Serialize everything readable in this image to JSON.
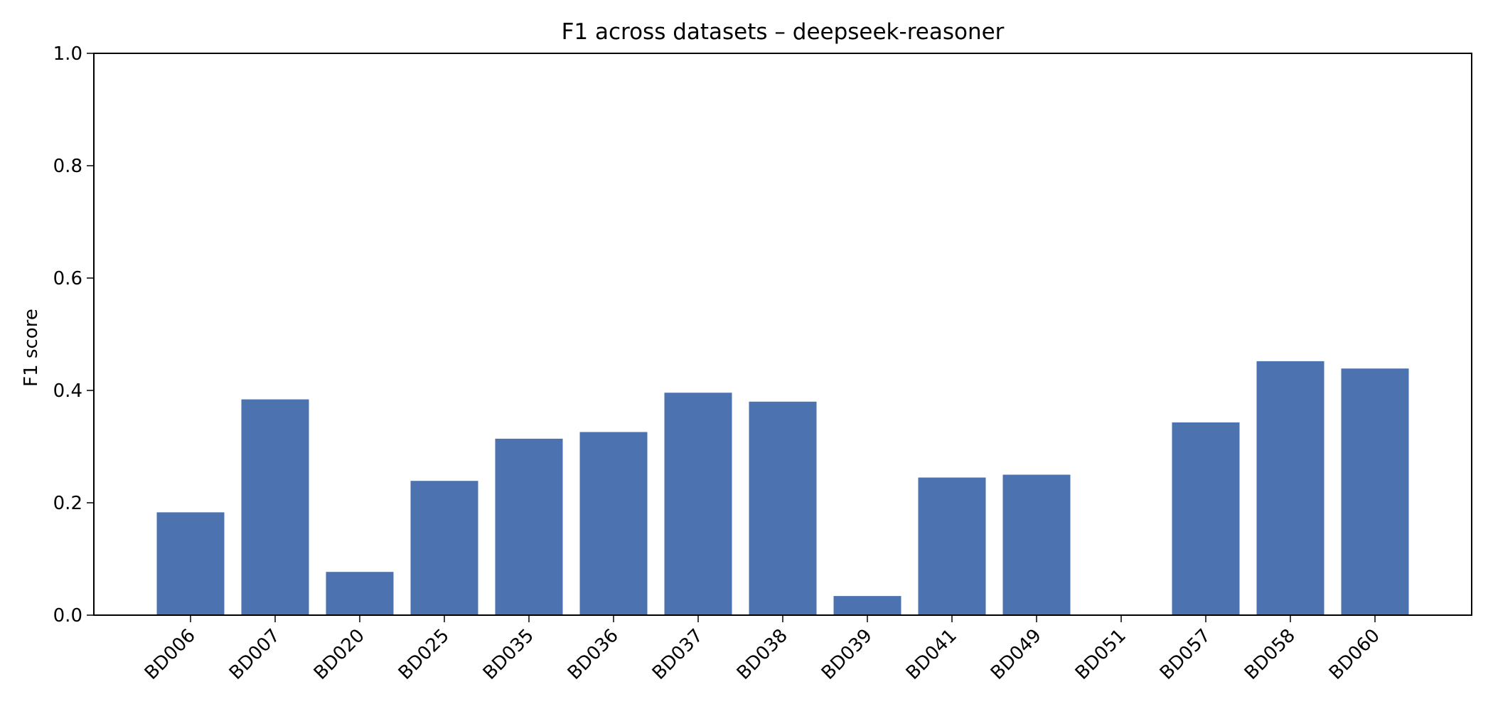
{
  "chart_data": {
    "type": "bar",
    "title": "F1 across datasets – deepseek-reasoner",
    "xlabel": "",
    "ylabel": "F1 score",
    "ylim": [
      0,
      1.0
    ],
    "yticks": [
      "0.0",
      "0.2",
      "0.4",
      "0.6",
      "0.8",
      "1.0"
    ],
    "categories": [
      "BD006",
      "BD007",
      "BD020",
      "BD025",
      "BD035",
      "BD036",
      "BD037",
      "BD038",
      "BD039",
      "BD041",
      "BD049",
      "BD051",
      "BD057",
      "BD058",
      "BD060"
    ],
    "values": [
      0.183,
      0.384,
      0.077,
      0.239,
      0.314,
      0.326,
      0.396,
      0.38,
      0.034,
      0.245,
      0.25,
      0.0,
      0.343,
      0.452,
      0.439
    ],
    "bar_color": "#4c72b0",
    "grid": false,
    "legend": "none"
  }
}
